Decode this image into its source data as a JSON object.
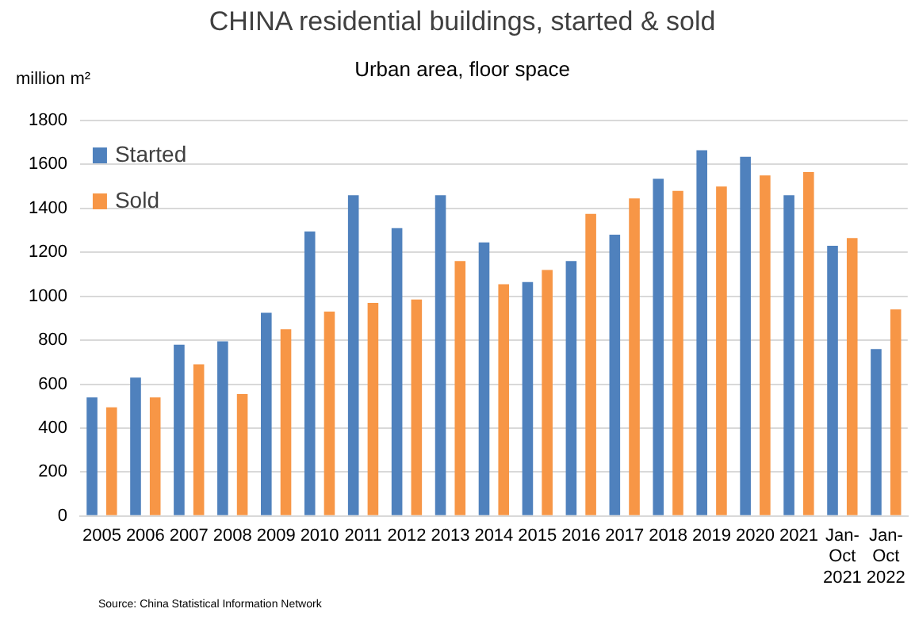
{
  "chart_data": {
    "type": "bar",
    "title": "CHINA residential buildings, started & sold",
    "subtitle": "Urban area, floor space",
    "ylabel": "million m²",
    "categories": [
      "2005",
      "2006",
      "2007",
      "2008",
      "2009",
      "2010",
      "2011",
      "2012",
      "2013",
      "2014",
      "2015",
      "2016",
      "2017",
      "2018",
      "2019",
      "2020",
      "2021",
      "Jan-Oct 2021",
      "Jan-Oct 2022"
    ],
    "series": [
      {
        "name": "Started",
        "color": "#4f81bd",
        "values": [
          540,
          630,
          780,
          795,
          925,
          1295,
          1460,
          1310,
          1460,
          1245,
          1065,
          1160,
          1280,
          1535,
          1665,
          1635,
          1460,
          1230,
          760
        ]
      },
      {
        "name": "Sold",
        "color": "#f79646",
        "values": [
          495,
          540,
          690,
          555,
          850,
          930,
          970,
          985,
          1160,
          1055,
          1120,
          1375,
          1445,
          1480,
          1500,
          1550,
          1565,
          1265,
          940
        ]
      }
    ],
    "ylim": [
      0,
      1800
    ],
    "yticks": [
      0,
      200,
      400,
      600,
      800,
      1000,
      1200,
      1400,
      1600,
      1800
    ],
    "grid": "y",
    "legend": "top left",
    "annotations": [
      "Source: China Statistical Information Network"
    ]
  }
}
